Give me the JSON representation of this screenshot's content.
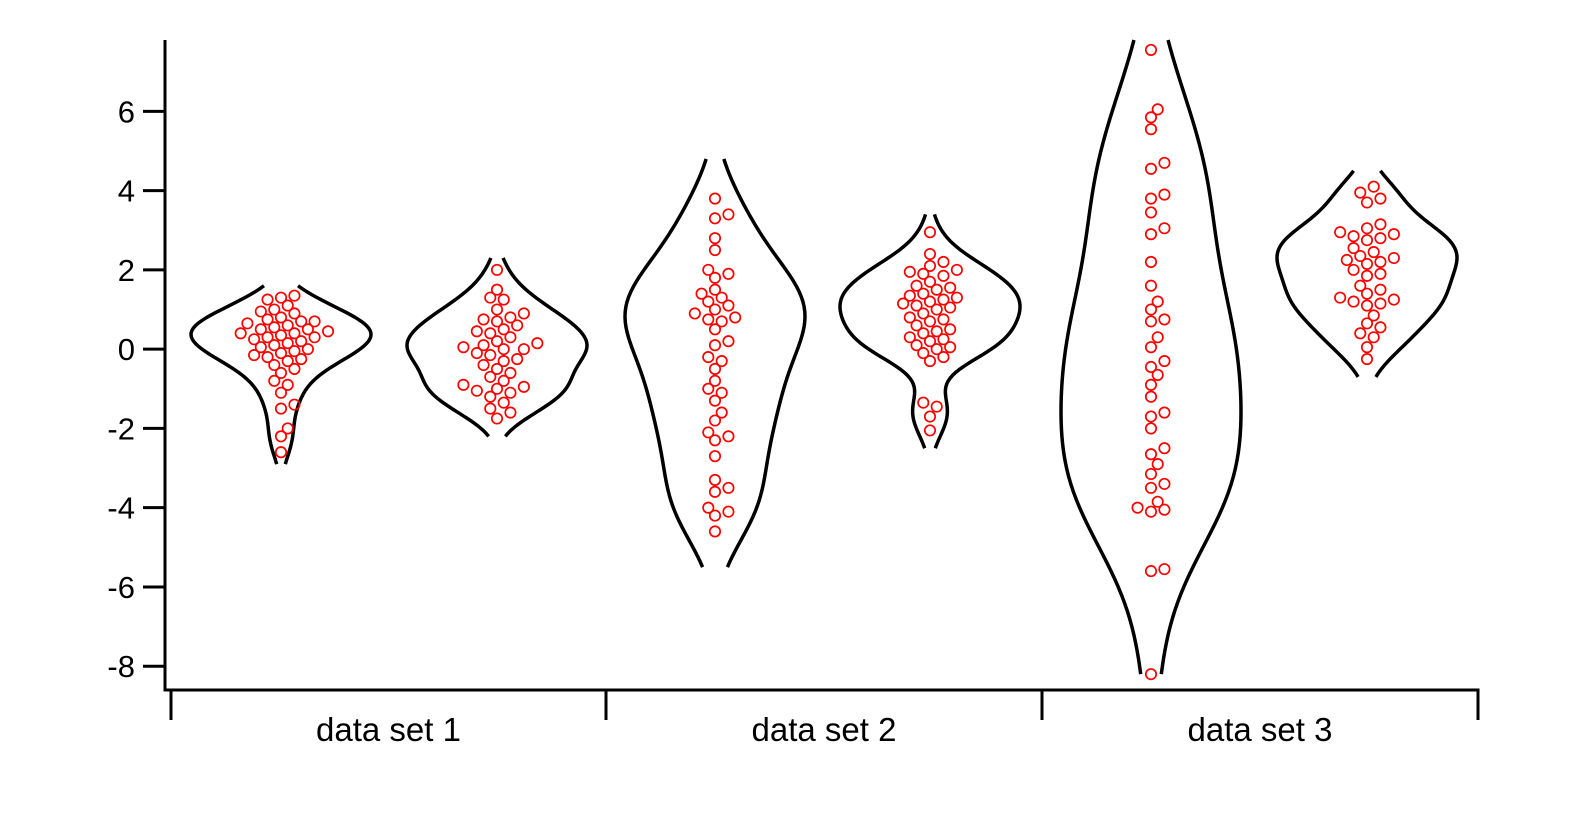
{
  "chart_data": {
    "type": "violin",
    "title": "",
    "xlabel": "",
    "ylabel": "",
    "ylim": [
      -8.6,
      7.8
    ],
    "yticks": [
      -8,
      -6,
      -4,
      -2,
      0,
      2,
      4,
      6
    ],
    "ytick_labels": [
      "-8",
      "-6",
      "-4",
      "-2",
      "0",
      "2",
      "4",
      "6"
    ],
    "categories": [
      "data set 1",
      "data set 2",
      "data set 3"
    ],
    "point_color": "#ff0000",
    "outline_color": "#000000",
    "grid": false,
    "series": [
      {
        "category": "data set 1",
        "range": [
          -2.9,
          1.6
        ],
        "points": [
          1.35,
          1.3,
          1.25,
          1.1,
          1.0,
          0.95,
          0.9,
          0.8,
          0.75,
          0.7,
          0.7,
          0.65,
          0.6,
          0.55,
          0.5,
          0.5,
          0.45,
          0.4,
          0.4,
          0.35,
          0.3,
          0.3,
          0.25,
          0.2,
          0.15,
          0.1,
          0.05,
          0.0,
          -0.05,
          -0.1,
          -0.15,
          -0.2,
          -0.25,
          -0.3,
          -0.4,
          -0.5,
          -0.6,
          -0.8,
          -0.9,
          -1.1,
          -1.4,
          -1.5,
          -2.0,
          -2.2,
          -2.6
        ]
      },
      {
        "category": "data set 1",
        "range": [
          -2.2,
          2.3
        ],
        "points": [
          2.0,
          1.5,
          1.3,
          1.25,
          1.0,
          0.9,
          0.8,
          0.75,
          0.7,
          0.6,
          0.5,
          0.45,
          0.4,
          0.3,
          0.2,
          0.15,
          0.1,
          0.05,
          0.0,
          0.0,
          -0.1,
          -0.15,
          -0.25,
          -0.3,
          -0.4,
          -0.5,
          -0.6,
          -0.7,
          -0.8,
          -0.9,
          -0.95,
          -1.0,
          -1.05,
          -1.1,
          -1.2,
          -1.35,
          -1.5,
          -1.6,
          -1.75
        ]
      },
      {
        "category": "data set 2",
        "range": [
          -5.5,
          4.8
        ],
        "points": [
          3.8,
          3.4,
          3.3,
          2.8,
          2.5,
          2.0,
          1.9,
          1.8,
          1.5,
          1.4,
          1.3,
          1.2,
          1.1,
          1.0,
          0.9,
          0.8,
          0.75,
          0.7,
          0.5,
          0.2,
          0.1,
          -0.2,
          -0.3,
          -0.5,
          -0.8,
          -1.0,
          -1.1,
          -1.3,
          -1.6,
          -1.8,
          -2.1,
          -2.2,
          -2.3,
          -2.7,
          -3.3,
          -3.5,
          -3.6,
          -4.0,
          -4.1,
          -4.2,
          -4.6
        ]
      },
      {
        "category": "data set 2",
        "range": [
          -2.5,
          3.4
        ],
        "points": [
          2.95,
          2.4,
          2.2,
          2.1,
          2.0,
          1.95,
          1.9,
          1.85,
          1.7,
          1.6,
          1.55,
          1.5,
          1.4,
          1.35,
          1.3,
          1.25,
          1.2,
          1.15,
          1.1,
          1.05,
          1.0,
          0.9,
          0.8,
          0.75,
          0.7,
          0.6,
          0.5,
          0.45,
          0.4,
          0.3,
          0.25,
          0.2,
          0.1,
          0.05,
          0.0,
          -0.1,
          -0.2,
          -0.3,
          -1.35,
          -1.45,
          -1.7,
          -2.05
        ]
      },
      {
        "category": "data set 3",
        "range": [
          -8.2,
          7.8
        ],
        "points": [
          7.55,
          6.05,
          5.85,
          5.55,
          4.7,
          4.55,
          3.9,
          3.8,
          3.45,
          3.05,
          2.9,
          2.2,
          1.6,
          1.2,
          1.0,
          0.75,
          0.7,
          0.3,
          0.05,
          -0.3,
          -0.45,
          -0.65,
          -0.9,
          -1.2,
          -1.6,
          -1.7,
          -2.0,
          -2.5,
          -2.65,
          -2.9,
          -3.15,
          -3.4,
          -3.5,
          -3.85,
          -4.0,
          -4.05,
          -4.1,
          -5.55,
          -5.6,
          -8.2
        ]
      },
      {
        "category": "data set 3",
        "range": [
          -0.7,
          4.5
        ],
        "points": [
          4.1,
          3.95,
          3.8,
          3.7,
          3.15,
          3.05,
          2.95,
          2.9,
          2.85,
          2.8,
          2.75,
          2.55,
          2.45,
          2.35,
          2.3,
          2.25,
          2.2,
          2.15,
          2.0,
          1.9,
          1.85,
          1.6,
          1.5,
          1.4,
          1.3,
          1.25,
          1.2,
          1.15,
          1.1,
          0.85,
          0.65,
          0.55,
          0.4,
          0.3,
          0.05,
          -0.25
        ]
      }
    ]
  }
}
